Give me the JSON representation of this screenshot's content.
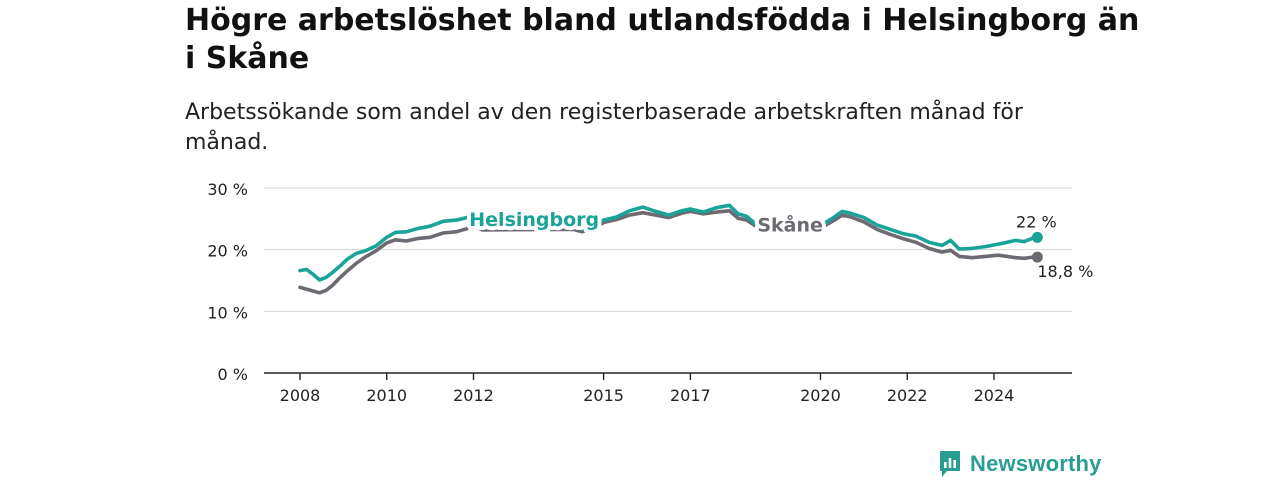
{
  "header": {
    "title": "Högre arbetslöshet bland utlandsfödda i Helsingborg än i Skåne",
    "subtitle": "Arbetssökande som andel av den registerbaserade arbetskraften månad för månad."
  },
  "brand": {
    "name": "Newsworthy",
    "icon": "newsworthy-logo-icon",
    "color": "#2a9d93"
  },
  "chart_data": {
    "type": "line",
    "xlim": [
      2007.6,
      2025.6
    ],
    "ylim": [
      0,
      30
    ],
    "yticks": [
      0,
      10,
      20,
      30
    ],
    "ytick_labels": [
      "0 %",
      "10 %",
      "20 %",
      "30 %"
    ],
    "xticks": [
      2008,
      2010,
      2012,
      2015,
      2017,
      2020,
      2022,
      2024
    ],
    "xtick_labels": [
      "2008",
      "2010",
      "2012",
      "2015",
      "2017",
      "2020",
      "2022",
      "2024"
    ],
    "grid": true,
    "series": [
      {
        "name": "Helsingborg",
        "color": "#1aa398",
        "end_label": "22 %",
        "x": [
          2008.0,
          2008.15,
          2008.3,
          2008.45,
          2008.6,
          2008.75,
          2008.9,
          2009.1,
          2009.3,
          2009.5,
          2009.75,
          2010.0,
          2010.2,
          2010.45,
          2010.7,
          2011.0,
          2011.3,
          2011.6,
          2011.85,
          2012.0,
          2012.2,
          2014.3,
          2014.5,
          2014.8,
          2015.0,
          2015.3,
          2015.6,
          2015.9,
          2016.2,
          2016.5,
          2016.8,
          2017.0,
          2017.3,
          2017.6,
          2017.9,
          2018.1,
          2018.3,
          2018.6,
          2020.0,
          2020.3,
          2020.5,
          2020.7,
          2021.0,
          2021.3,
          2021.6,
          2021.9,
          2022.2,
          2022.5,
          2022.8,
          2023.0,
          2023.2,
          2023.5,
          2023.8,
          2024.1,
          2024.3,
          2024.5,
          2024.7,
          2024.9,
          2025.0
        ],
        "y": [
          16.6,
          16.8,
          16.0,
          15.1,
          15.5,
          16.3,
          17.2,
          18.5,
          19.4,
          19.8,
          20.6,
          22.0,
          22.8,
          22.9,
          23.4,
          23.8,
          24.6,
          24.8,
          25.2,
          25.9,
          25.0,
          23.8,
          23.3,
          24.0,
          24.8,
          25.3,
          26.3,
          26.9,
          26.2,
          25.6,
          26.3,
          26.6,
          26.1,
          26.8,
          27.2,
          25.8,
          25.4,
          23.6,
          23.9,
          25.2,
          26.2,
          25.9,
          25.2,
          24.0,
          23.3,
          22.6,
          22.2,
          21.2,
          20.7,
          21.5,
          20.1,
          20.2,
          20.5,
          20.9,
          21.2,
          21.5,
          21.3,
          21.9,
          22.0
        ]
      },
      {
        "name": "Skåne",
        "color": "#6d6a72",
        "end_label": "18,8 %",
        "x": [
          2008.0,
          2008.15,
          2008.3,
          2008.45,
          2008.6,
          2008.75,
          2008.9,
          2009.1,
          2009.3,
          2009.5,
          2009.75,
          2010.0,
          2010.2,
          2010.45,
          2010.7,
          2011.0,
          2011.3,
          2011.6,
          2011.85,
          2012.0,
          2012.2,
          2014.3,
          2014.5,
          2014.8,
          2015.0,
          2015.3,
          2015.6,
          2015.9,
          2016.2,
          2016.5,
          2016.8,
          2017.0,
          2017.3,
          2017.6,
          2017.9,
          2018.1,
          2018.3,
          2018.6,
          2020.0,
          2020.3,
          2020.5,
          2020.7,
          2021.0,
          2021.3,
          2021.6,
          2021.9,
          2022.2,
          2022.5,
          2022.8,
          2023.0,
          2023.2,
          2023.5,
          2023.8,
          2024.1,
          2024.3,
          2024.5,
          2024.7,
          2024.9,
          2025.0
        ],
        "y": [
          13.9,
          13.6,
          13.3,
          13.0,
          13.4,
          14.2,
          15.3,
          16.6,
          17.8,
          18.8,
          19.8,
          21.1,
          21.6,
          21.4,
          21.8,
          22.0,
          22.7,
          22.9,
          23.4,
          24.0,
          23.2,
          23.3,
          22.9,
          23.5,
          24.4,
          24.9,
          25.6,
          26.0,
          25.6,
          25.2,
          25.9,
          26.2,
          25.8,
          26.1,
          26.3,
          25.1,
          24.8,
          23.4,
          23.5,
          24.7,
          25.6,
          25.3,
          24.5,
          23.3,
          22.5,
          21.8,
          21.2,
          20.2,
          19.6,
          19.9,
          18.9,
          18.7,
          18.9,
          19.1,
          18.9,
          18.7,
          18.6,
          18.8,
          18.8
        ]
      }
    ],
    "annotations": [
      {
        "text": "Helsingborg",
        "series": "Helsingborg",
        "x": 2013.4,
        "y": 24.8
      },
      {
        "text": "Skåne",
        "series": "Skåne",
        "x": 2019.3,
        "y": 23.9
      }
    ]
  }
}
